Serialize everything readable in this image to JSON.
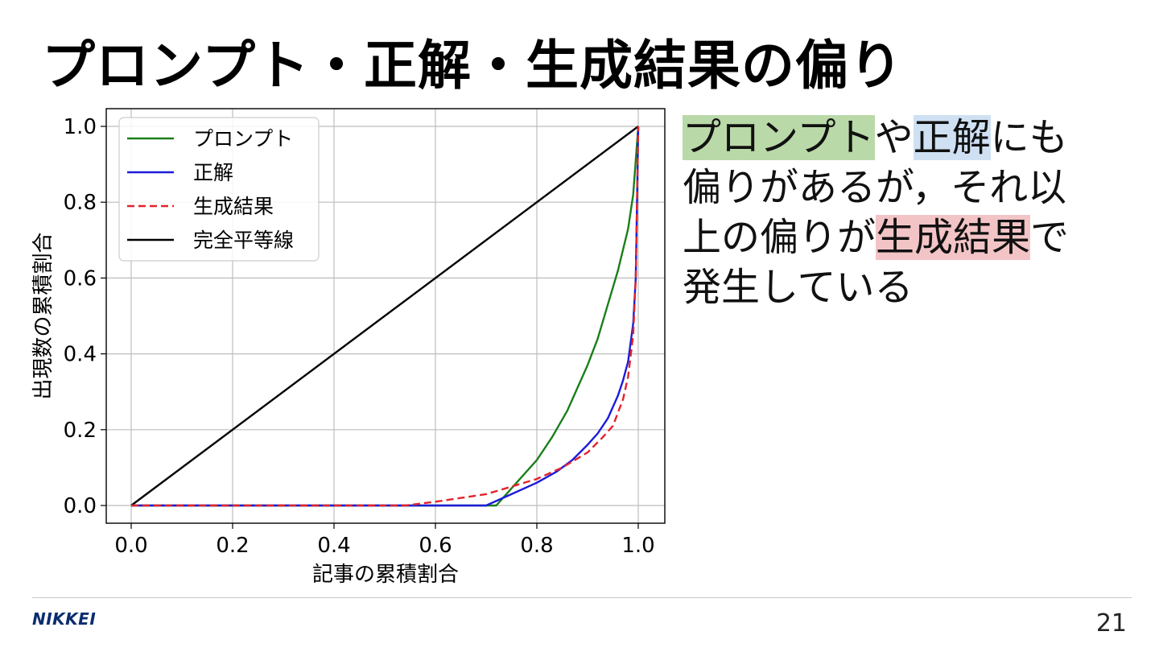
{
  "title": "プロンプト・正解・生成結果の偏り",
  "side_text": {
    "line1": [
      "プロンプト",
      "や",
      "正解",
      "にも"
    ],
    "line2": "偏りがあるが，それ以",
    "line3": [
      "上の偏りが",
      "生成結果",
      "で"
    ],
    "line4": "発生している"
  },
  "footer": {
    "logo": "NIKKEI",
    "page_number": "21"
  },
  "chart_data": {
    "type": "line",
    "title": "",
    "xlabel": "記事の累積割合",
    "ylabel": "出現数の累積割合",
    "xlim": [
      0.0,
      1.0
    ],
    "ylim": [
      0.0,
      1.0
    ],
    "xticks": [
      "0.0",
      "0.2",
      "0.4",
      "0.6",
      "0.8",
      "1.0"
    ],
    "yticks": [
      "0.0",
      "0.2",
      "0.4",
      "0.6",
      "0.8",
      "1.0"
    ],
    "grid": true,
    "legend_position": "top-left",
    "series": [
      {
        "name": "プロンプト",
        "color": "#1a7f1a",
        "dash": "solid",
        "x": [
          0.0,
          0.72,
          0.76,
          0.8,
          0.83,
          0.86,
          0.88,
          0.9,
          0.92,
          0.94,
          0.96,
          0.98,
          0.99,
          1.0
        ],
        "y": [
          0.0,
          0.0,
          0.06,
          0.12,
          0.18,
          0.25,
          0.31,
          0.37,
          0.44,
          0.53,
          0.62,
          0.73,
          0.82,
          1.0
        ]
      },
      {
        "name": "正解",
        "color": "#1c1cdb",
        "dash": "solid",
        "x": [
          0.0,
          0.7,
          0.75,
          0.8,
          0.84,
          0.87,
          0.9,
          0.92,
          0.94,
          0.96,
          0.97,
          0.98,
          0.99,
          0.995,
          1.0
        ],
        "y": [
          0.0,
          0.0,
          0.03,
          0.06,
          0.09,
          0.12,
          0.16,
          0.19,
          0.23,
          0.29,
          0.33,
          0.38,
          0.48,
          0.6,
          1.0
        ]
      },
      {
        "name": "生成結果",
        "color": "#e3232b",
        "dash": "dashed",
        "x": [
          0.0,
          0.54,
          0.6,
          0.65,
          0.7,
          0.75,
          0.8,
          0.85,
          0.9,
          0.93,
          0.95,
          0.97,
          0.98,
          0.99,
          0.995,
          1.0
        ],
        "y": [
          0.0,
          0.0,
          0.01,
          0.02,
          0.03,
          0.05,
          0.07,
          0.1,
          0.14,
          0.18,
          0.21,
          0.28,
          0.34,
          0.45,
          0.6,
          1.0
        ]
      },
      {
        "name": "完全平等線",
        "color": "#000000",
        "dash": "solid",
        "x": [
          0.0,
          1.0
        ],
        "y": [
          0.0,
          1.0
        ]
      }
    ]
  }
}
